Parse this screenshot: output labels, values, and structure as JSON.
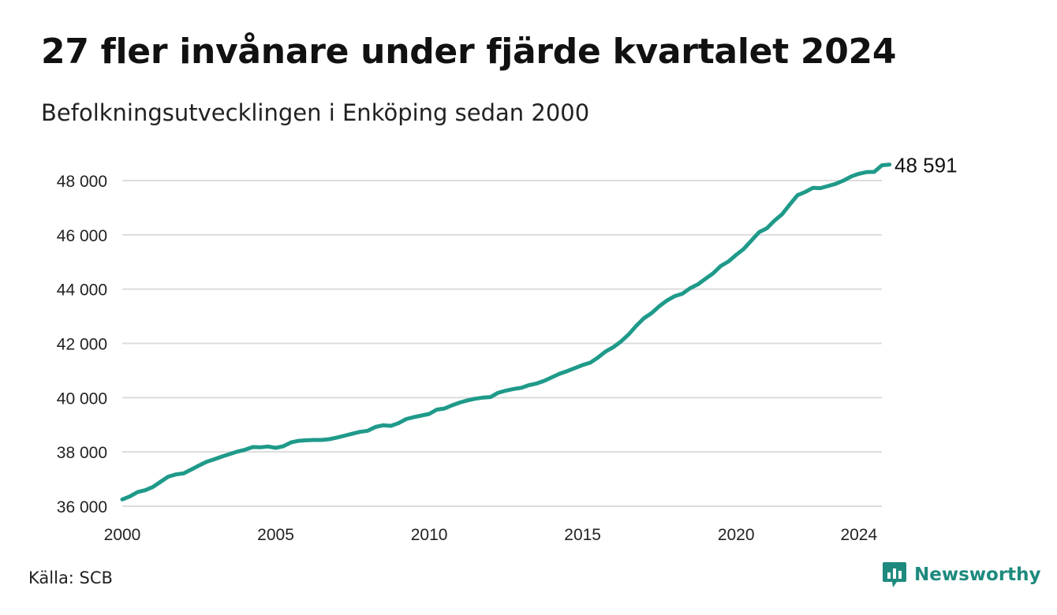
{
  "title": "27 fler invånare under fjärde kvartalet 2024",
  "subtitle": "Befolkningsutvecklingen i Enköping sedan 2000",
  "source": "Källa: SCB",
  "brand": {
    "name": "Newsworthy",
    "icon": "chart-bubble-icon"
  },
  "colors": {
    "line": "#1f9a8a",
    "grid": "#dcdcdc",
    "brand": "#1e8a7e"
  },
  "chart_data": {
    "type": "line",
    "title": "27 fler invånare under fjärde kvartalet 2024",
    "subtitle": "Befolkningsutvecklingen i Enköping sedan 2000",
    "xlabel": "",
    "ylabel": "",
    "xlim": [
      2000,
      2024.75
    ],
    "ylim": [
      36000,
      48600
    ],
    "grid": true,
    "y_ticks": [
      {
        "value": 36000,
        "label": "36 000"
      },
      {
        "value": 38000,
        "label": "38 000"
      },
      {
        "value": 40000,
        "label": "40 000"
      },
      {
        "value": 42000,
        "label": "42 000"
      },
      {
        "value": 44000,
        "label": "44 000"
      },
      {
        "value": 46000,
        "label": "46 000"
      },
      {
        "value": 48000,
        "label": "48 000"
      }
    ],
    "x_ticks": [
      {
        "value": 2000,
        "label": "2000"
      },
      {
        "value": 2005,
        "label": "2005"
      },
      {
        "value": 2010,
        "label": "2010"
      },
      {
        "value": 2015,
        "label": "2015"
      },
      {
        "value": 2020,
        "label": "2020"
      },
      {
        "value": 2024,
        "label": "2024"
      }
    ],
    "end_label": "48 591",
    "series": [
      {
        "frequency": "quarterly",
        "start": "2000 Q1",
        "values": [
          36250,
          36360,
          36520,
          36590,
          36710,
          36900,
          37090,
          37170,
          37210,
          37350,
          37500,
          37640,
          37730,
          37830,
          37920,
          38010,
          38080,
          38180,
          38170,
          38200,
          38150,
          38210,
          38350,
          38410,
          38430,
          38440,
          38440,
          38470,
          38530,
          38600,
          38670,
          38740,
          38780,
          38920,
          38980,
          38960,
          39060,
          39210,
          39280,
          39340,
          39400,
          39560,
          39600,
          39720,
          39820,
          39900,
          39960,
          40000,
          40020,
          40180,
          40260,
          40320,
          40360,
          40460,
          40520,
          40620,
          40750,
          40880,
          40980,
          41090,
          41200,
          41290,
          41480,
          41700,
          41860,
          42070,
          42330,
          42650,
          42930,
          43120,
          43370,
          43580,
          43740,
          43830,
          44030,
          44170,
          44380,
          44580,
          44850,
          45020,
          45260,
          45480,
          45790,
          46100,
          46240,
          46520,
          46760,
          47120,
          47460,
          47580,
          47730,
          47720,
          47800,
          47880,
          48000,
          48150,
          48250,
          48310,
          48320,
          48564,
          48591
        ]
      }
    ]
  }
}
